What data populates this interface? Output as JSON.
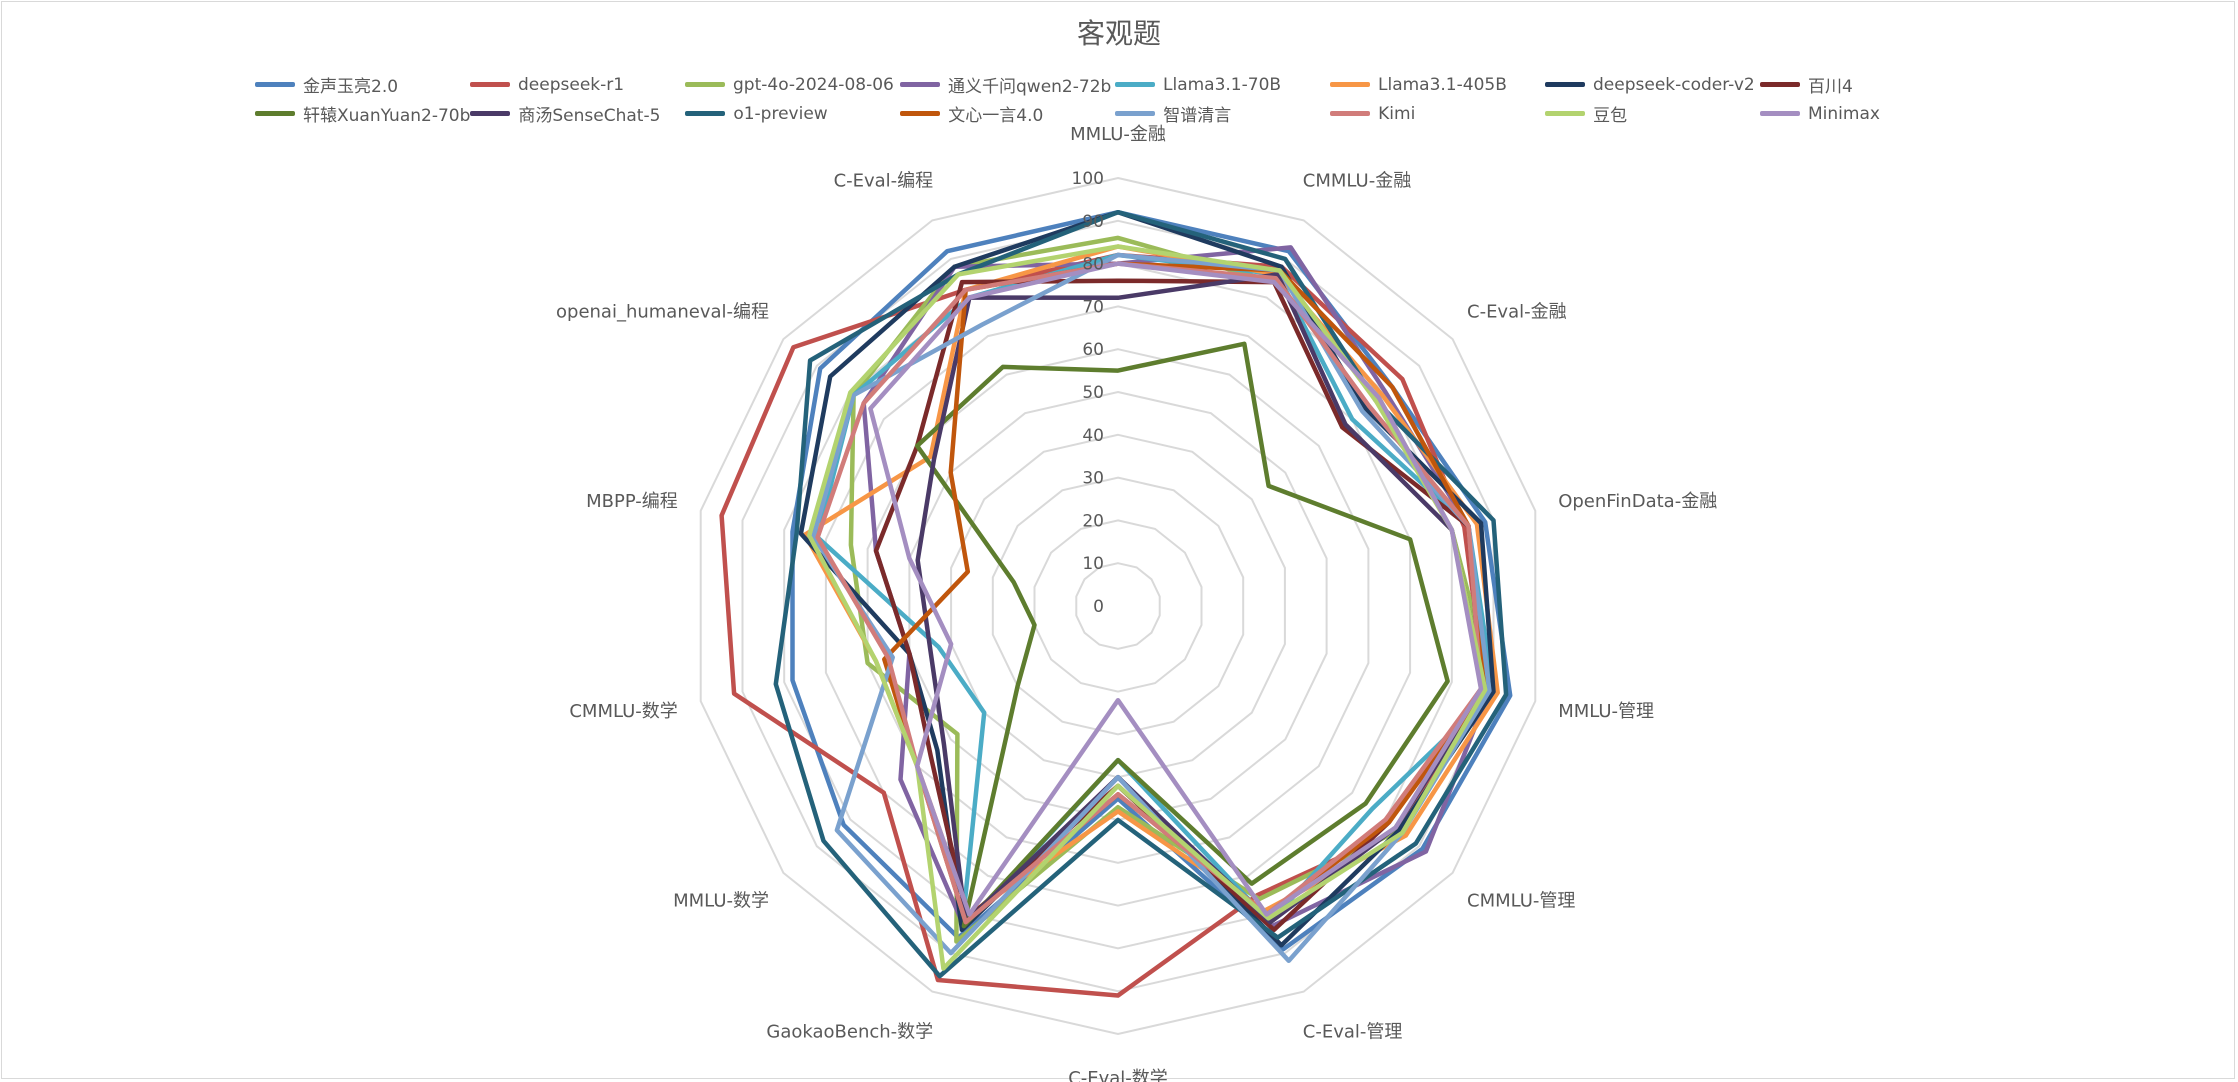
{
  "chart_data": {
    "type": "radar",
    "title": "客观题",
    "ylim": [
      0,
      100
    ],
    "ticks": [
      0,
      10,
      20,
      30,
      40,
      50,
      60,
      70,
      80,
      90,
      100
    ],
    "grid": true,
    "legend_position": "top",
    "categories": [
      "MMLU-金融",
      "CMMLU-金融",
      "C-Eval-金融",
      "OpenFinData-金融",
      "MMLU-管理",
      "CMMLU-管理",
      "C-Eval-管理",
      "C-Eval-数学",
      "GaokaoBench-数学",
      "MMLU-数学",
      "CMMLU-数学",
      "MBPP-编程",
      "openai_humaneval-编程",
      "C-Eval-编程"
    ],
    "series": [
      {
        "name": "金声玉亮2.0",
        "color": "#4e81bd",
        "values": [
          92,
          92,
          82,
          88,
          94,
          91,
          89,
          45,
          86,
          82,
          78,
          78,
          89,
          92
        ]
      },
      {
        "name": "deepseek-r1",
        "color": "#c0504d",
        "values": [
          82,
          88,
          85,
          83,
          88,
          84,
          75,
          91,
          97,
          70,
          92,
          95,
          97,
          82
        ]
      },
      {
        "name": "gpt-4o-2024-08-06",
        "color": "#9bbb59",
        "values": [
          86,
          84,
          78,
          80,
          90,
          84,
          76,
          47,
          87,
          48,
          60,
          64,
          79,
          88
        ]
      },
      {
        "name": "通义千问qwen2-72b",
        "color": "#8064a2",
        "values": [
          80,
          93,
          80,
          84,
          89,
          92,
          83,
          40,
          83,
          65,
          50,
          58,
          76,
          88
        ]
      },
      {
        "name": "Llama3.1-70B",
        "color": "#4bacc6",
        "values": [
          82,
          86,
          70,
          84,
          90,
          76,
          82,
          36,
          84,
          40,
          43,
          72,
          79,
          80
        ]
      },
      {
        "name": "Llama3.1-405B",
        "color": "#f79646",
        "values": [
          84,
          86,
          79,
          86,
          91,
          86,
          79,
          48,
          80,
          60,
          58,
          75,
          56,
          82
        ]
      },
      {
        "name": "deepseek-coder-v2",
        "color": "#1f3b5f",
        "values": [
          92,
          88,
          74,
          87,
          90,
          84,
          88,
          40,
          84,
          54,
          50,
          76,
          86,
          88
        ]
      },
      {
        "name": "百川4",
        "color": "#7b2a2a",
        "values": [
          76,
          84,
          67,
          84,
          87,
          81,
          84,
          42,
          81,
          56,
          50,
          58,
          60,
          84
        ]
      },
      {
        "name": "轩辕XuanYuan2-70b",
        "color": "#5e7d2e",
        "values": [
          55,
          68,
          45,
          70,
          79,
          74,
          72,
          36,
          83,
          30,
          20,
          25,
          60,
          62
        ]
      },
      {
        "name": "商汤SenseChat-5",
        "color": "#4a3a67",
        "values": [
          72,
          86,
          68,
          80,
          88,
          83,
          82,
          40,
          82,
          52,
          45,
          48,
          55,
          80
        ]
      },
      {
        "name": "o1-preview",
        "color": "#24627a",
        "values": [
          92,
          90,
          77,
          90,
          93,
          89,
          86,
          50,
          96,
          88,
          82,
          77,
          92,
          86
        ]
      },
      {
        "name": "文心一言4.0",
        "color": "#c0560c",
        "values": [
          80,
          87,
          82,
          84,
          88,
          81,
          80,
          44,
          82,
          60,
          56,
          36,
          50,
          82
        ]
      },
      {
        "name": "智谱清言",
        "color": "#7aa1ce",
        "values": [
          82,
          87,
          73,
          84,
          89,
          85,
          92,
          40,
          90,
          84,
          54,
          73,
          79,
          73
        ]
      },
      {
        "name": "Kimi",
        "color": "#d17c7a",
        "values": [
          80,
          85,
          75,
          84,
          87,
          80,
          80,
          44,
          82,
          60,
          55,
          72,
          76,
          82
        ]
      },
      {
        "name": "豆包",
        "color": "#b3d36f",
        "values": [
          84,
          87,
          77,
          80,
          88,
          85,
          81,
          42,
          94,
          60,
          58,
          74,
          80,
          86
        ]
      },
      {
        "name": "Minimax",
        "color": "#a48ec1",
        "values": [
          80,
          84,
          78,
          80,
          87,
          83,
          80,
          22,
          80,
          60,
          40,
          50,
          74,
          80
        ]
      }
    ]
  }
}
